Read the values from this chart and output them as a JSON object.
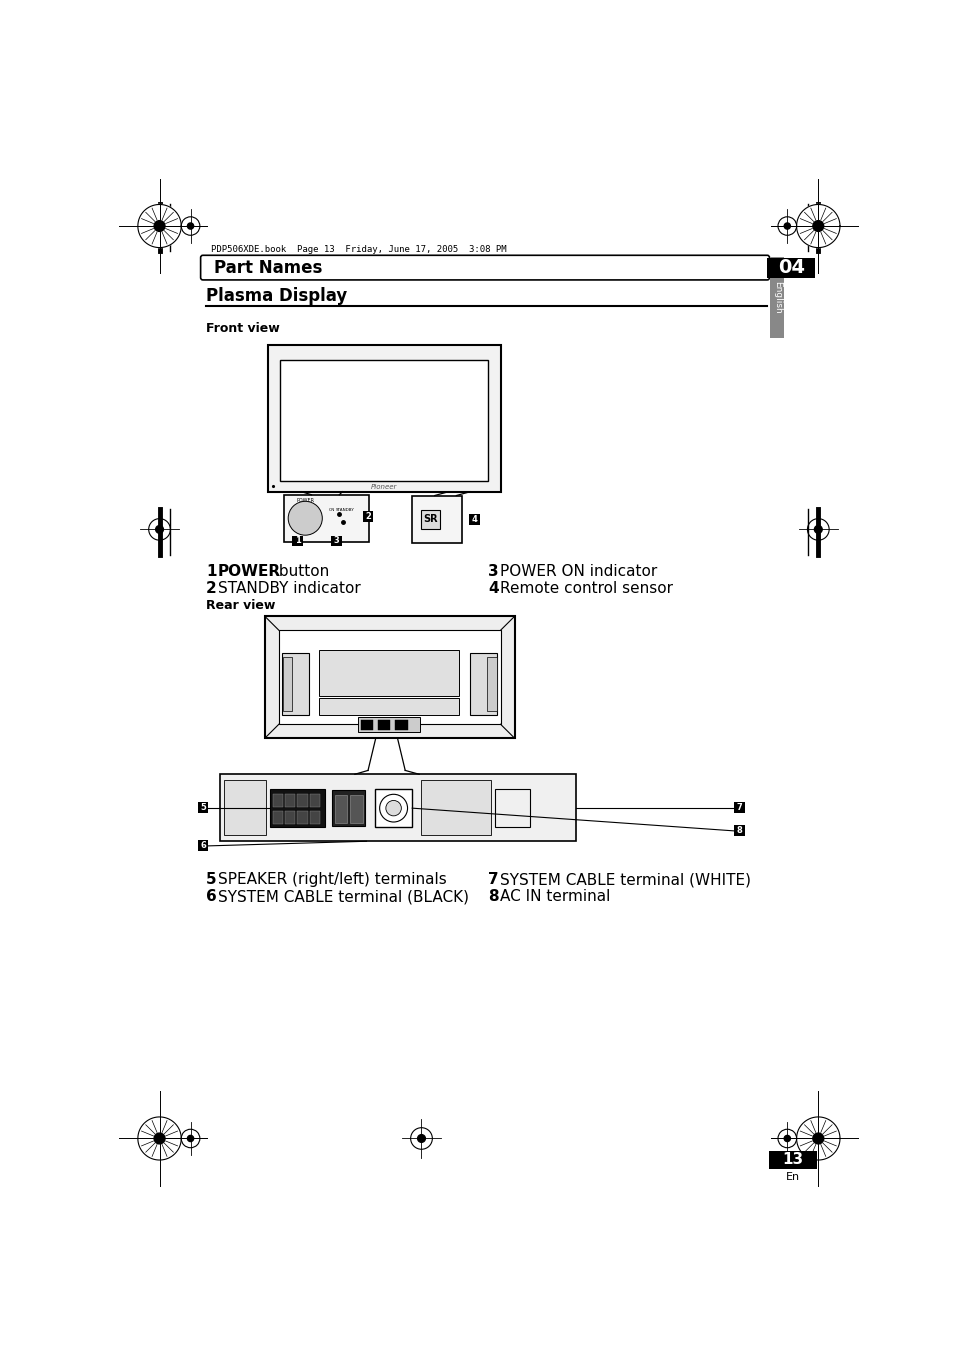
{
  "bg_color": "#ffffff",
  "page_header_text": "PDP506XDE.book  Page 13  Friday, June 17, 2005  3:08 PM",
  "section_number": "04",
  "section_title": "Part Names",
  "section_subtitle": "Plasma Display",
  "front_view_label": "Front view",
  "rear_view_label": "Rear view",
  "label1_bold": "POWER",
  "label1_rest": " button",
  "label2": "STANDBY indicator",
  "label3": "POWER ON indicator",
  "label4": "Remote control sensor",
  "label5": "SPEAKER (right/left) terminals",
  "label6": "SYSTEM CABLE terminal (BLACK)",
  "label7": "SYSTEM CABLE terminal (WHITE)",
  "label8": "AC IN terminal",
  "english_sidebar": "English",
  "page_number": "13",
  "page_number_sub": "En"
}
